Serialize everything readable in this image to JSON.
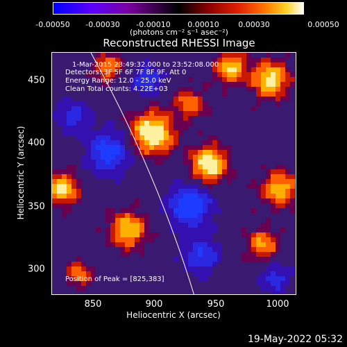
{
  "colorbar": {
    "ticks": [
      "-0.00050",
      "-0.00030",
      "-0.00010",
      "0.00010",
      "0.00030",
      "0.00050"
    ],
    "unit": "(photons cm⁻² s⁻¹ asec⁻²)"
  },
  "title": "Reconstructed RHESSI Image",
  "info": {
    "time_range": "1-Mar-2015 23:49:32.000 to 23:52:08.000",
    "detectors": "Detectors: 3F 5F 6F 7F 8F 9F, Att 0",
    "energy": "Energy Range: 12.0 - 25.0 keV",
    "clean": "Clean    Total counts: 4.22E+03",
    "peak": "Position of Peak = [825,383]"
  },
  "axes": {
    "xlabel": "Heliocentric X (arcsec)",
    "ylabel": "Heliocentric Y (arcsec)",
    "xticks": [
      "850",
      "900",
      "950",
      "1000"
    ],
    "yticks": [
      "450",
      "400",
      "350",
      "300"
    ]
  },
  "timestamp": "19-May-2022 05:32",
  "colors": {
    "background": "#000000",
    "axis": "#ffffff",
    "limb": "#ffffff"
  }
}
